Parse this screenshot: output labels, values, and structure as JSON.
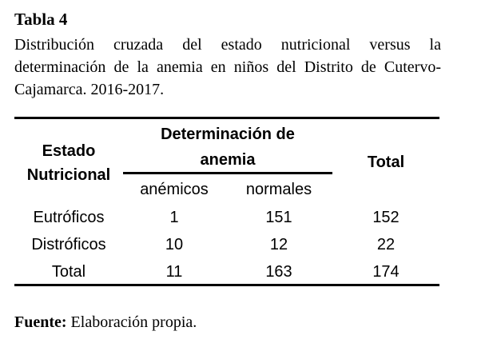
{
  "table_label": "Tabla 4",
  "caption": "Distribución cruzada del estado nutricional versus la determinación de la anemia en niños del Distrito de Cutervo-Cajamarca. 2016-2017.",
  "table": {
    "header_estado": [
      "Estado",
      "Nutricional"
    ],
    "header_determinacion": [
      "Determinación de",
      "anemia"
    ],
    "header_total": "Total",
    "subheaders": [
      "anémicos",
      "normales"
    ],
    "rows": [
      {
        "label": "Eutróficos",
        "anemicos": "1",
        "normales": "151",
        "total": "152"
      },
      {
        "label": "Distróficos",
        "anemicos": "10",
        "normales": "12",
        "total": "22"
      },
      {
        "label": "Total",
        "anemicos": "11",
        "normales": "163",
        "total": "174"
      }
    ]
  },
  "source": {
    "label": "Fuente:",
    "text": "Elaboración propia."
  }
}
